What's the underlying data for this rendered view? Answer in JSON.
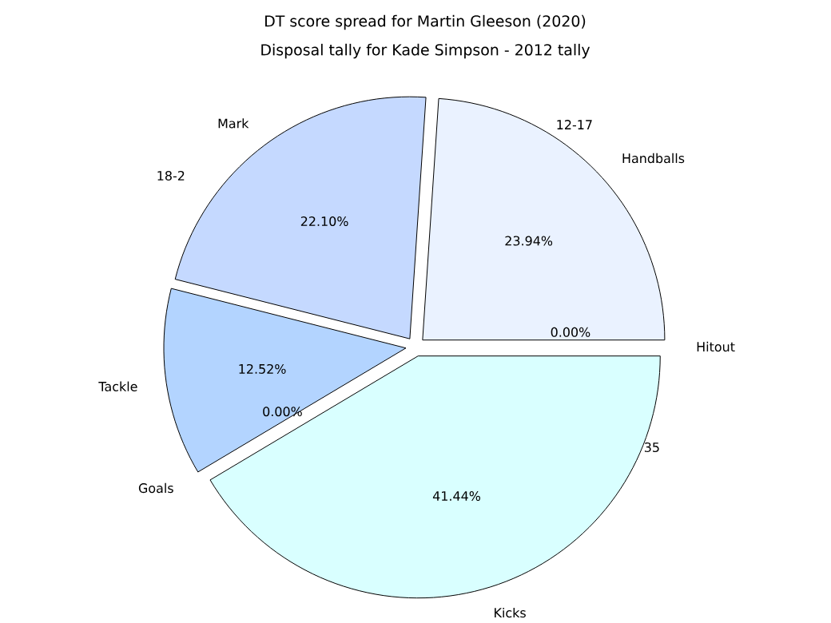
{
  "chart_data": {
    "type": "pie",
    "title": "Disposal tally for Kade Simpson - 2012 tally",
    "categories": [
      "Hitout",
      "Handballs",
      "Mark",
      "Tackle",
      "Goals",
      "Kicks"
    ],
    "values": [
      0.0,
      23.94,
      22.1,
      12.52,
      0.0,
      41.44
    ],
    "colors": [
      "#a9c7f2",
      "#eaf2ff",
      "#c5d9ff",
      "#b3d4ff",
      "#c9dbff",
      "#d9ffff"
    ],
    "value_labels": [
      "0.00%",
      "23.94%",
      "22.10%",
      "12.52%",
      "0.00%",
      "41.44%"
    ],
    "annotations": [
      "DT score spread for Martin Gleeson (2020)",
      "12-17",
      "18-2",
      "35"
    ]
  }
}
